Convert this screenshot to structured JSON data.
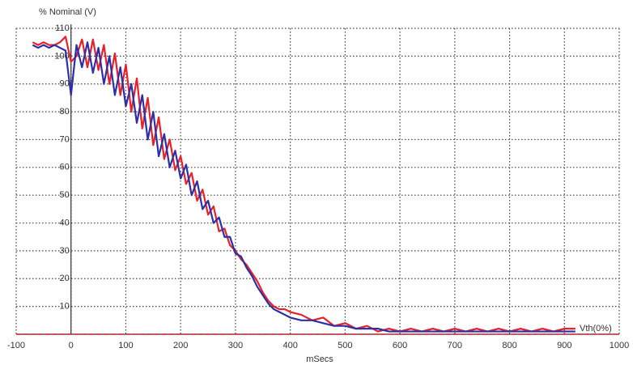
{
  "chart_data": {
    "type": "line",
    "title": "% Nominal (V)",
    "x_label": "mSecs",
    "threshold": {
      "value": 0,
      "label": "Vth(0%)",
      "color": "#e8202a"
    },
    "x": [
      -70,
      -60,
      -50,
      -40,
      -30,
      -20,
      -10,
      0,
      10,
      20,
      30,
      40,
      50,
      60,
      70,
      80,
      90,
      100,
      110,
      120,
      130,
      140,
      150,
      160,
      170,
      180,
      190,
      200,
      210,
      220,
      230,
      240,
      250,
      260,
      270,
      280,
      290,
      300,
      310,
      320,
      330,
      340,
      350,
      360,
      370,
      380,
      390,
      400,
      420,
      440,
      460,
      480,
      500,
      520,
      540,
      560,
      580,
      600,
      620,
      640,
      660,
      680,
      700,
      720,
      740,
      760,
      780,
      800,
      820,
      840,
      860,
      880,
      900,
      920
    ],
    "series": [
      {
        "color": "#e8202a",
        "values": [
          105,
          104,
          105,
          104,
          104,
          105,
          107,
          98,
          100,
          106,
          96,
          106,
          95,
          104,
          90,
          101,
          86,
          97,
          80,
          92,
          74,
          85,
          68,
          78,
          63,
          70,
          59,
          64,
          54,
          58,
          48,
          52,
          43,
          46,
          37,
          38,
          32,
          30,
          27,
          25,
          22,
          19,
          15,
          12,
          10,
          9,
          9,
          8,
          7,
          5,
          6,
          3,
          4,
          2,
          3,
          1,
          2,
          1,
          2,
          1,
          2,
          1,
          2,
          1,
          2,
          1,
          2,
          1,
          2,
          1,
          2,
          1,
          2,
          2
        ]
      },
      {
        "color": "#2b2fa8",
        "values": [
          104,
          103,
          104,
          103,
          104,
          103,
          102,
          86,
          104,
          96,
          105,
          94,
          103,
          90,
          100,
          86,
          96,
          82,
          90,
          76,
          86,
          70,
          80,
          64,
          72,
          60,
          66,
          56,
          61,
          50,
          55,
          45,
          48,
          40,
          42,
          35,
          35,
          29,
          28,
          24,
          21,
          17,
          14,
          11,
          9,
          8,
          7,
          6,
          5,
          5,
          4,
          3,
          3,
          2,
          2,
          2,
          1,
          1,
          1,
          1,
          1,
          1,
          1,
          1,
          1,
          1,
          1,
          1,
          1,
          1,
          1,
          1,
          1,
          1
        ]
      }
    ],
    "xlim": [
      -100,
      1000
    ],
    "ylim": [
      0,
      110
    ],
    "xticks": [
      -100,
      0,
      100,
      200,
      300,
      400,
      500,
      600,
      700,
      800,
      900,
      1000
    ],
    "yticks": [
      10,
      20,
      30,
      40,
      50,
      60,
      70,
      80,
      90,
      100,
      110
    ],
    "grid": true
  }
}
